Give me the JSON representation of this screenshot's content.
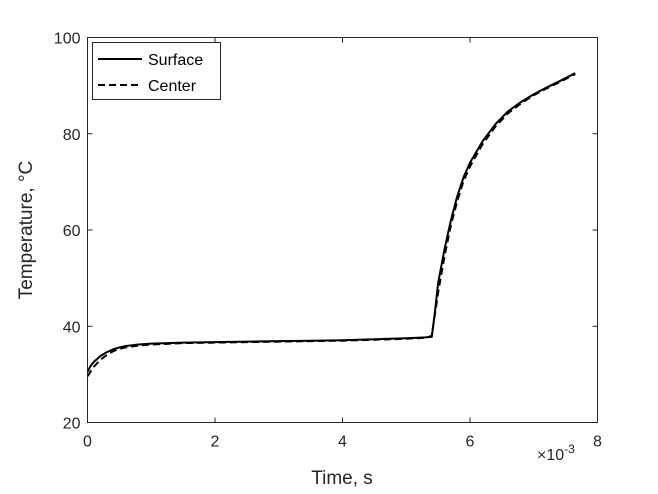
{
  "chart_data": {
    "type": "line",
    "title": "",
    "xlabel": "Time, s",
    "ylabel": "Temperature, °C",
    "x_exponent_label": {
      "base": "×10",
      "exponent": "-3"
    },
    "xlim": [
      0,
      0.008
    ],
    "ylim": [
      20,
      100
    ],
    "xticks": [
      0,
      0.002,
      0.004,
      0.006,
      0.008
    ],
    "xtick_labels": [
      "0",
      "2",
      "4",
      "6",
      "8"
    ],
    "yticks": [
      20,
      40,
      60,
      80,
      100
    ],
    "ytick_labels": [
      "20",
      "40",
      "60",
      "80",
      "100"
    ],
    "grid": false,
    "legend_position": "top-left",
    "series": [
      {
        "name": "Surface",
        "style": "solid",
        "color": "#000000",
        "x": [
          0,
          5e-05,
          0.0001,
          0.0002,
          0.0003,
          0.0004,
          0.0005,
          0.0006,
          0.0008,
          0.001,
          0.0015,
          0.002,
          0.0025,
          0.003,
          0.0035,
          0.004,
          0.0045,
          0.005,
          0.0053,
          0.0054,
          0.00545,
          0.0055,
          0.0056,
          0.0057,
          0.0058,
          0.0059,
          0.006,
          0.0062,
          0.0064,
          0.0066,
          0.0068,
          0.007,
          0.0072,
          0.0074,
          0.00765
        ],
        "y": [
          30.5,
          31.8,
          32.6,
          33.8,
          34.6,
          35.2,
          35.6,
          35.9,
          36.2,
          36.4,
          36.6,
          36.7,
          36.8,
          36.9,
          37.0,
          37.1,
          37.3,
          37.5,
          37.7,
          37.8,
          43.0,
          49.0,
          56.0,
          62.0,
          67.0,
          71.0,
          74.0,
          78.5,
          82.0,
          84.7,
          86.6,
          88.2,
          89.6,
          90.9,
          92.6
        ]
      },
      {
        "name": "Center",
        "style": "dashed",
        "color": "#000000",
        "x": [
          0,
          5e-05,
          0.0001,
          0.0002,
          0.0003,
          0.0004,
          0.0005,
          0.0006,
          0.0008,
          0.001,
          0.0015,
          0.002,
          0.0025,
          0.003,
          0.0035,
          0.004,
          0.0045,
          0.005,
          0.0053,
          0.0054,
          0.0055,
          0.0056,
          0.0057,
          0.0058,
          0.0059,
          0.006,
          0.0062,
          0.0064,
          0.0066,
          0.0068,
          0.007,
          0.0072,
          0.0074,
          0.00765
        ],
        "y": [
          29.6,
          30.6,
          31.6,
          33.0,
          34.0,
          34.8,
          35.3,
          35.6,
          36.0,
          36.2,
          36.5,
          36.6,
          36.7,
          36.8,
          36.9,
          37.0,
          37.2,
          37.4,
          37.6,
          38.0,
          47.0,
          54.5,
          61.0,
          66.0,
          70.2,
          73.2,
          77.9,
          81.5,
          84.3,
          86.3,
          88.0,
          89.4,
          90.7,
          92.4
        ]
      }
    ]
  }
}
